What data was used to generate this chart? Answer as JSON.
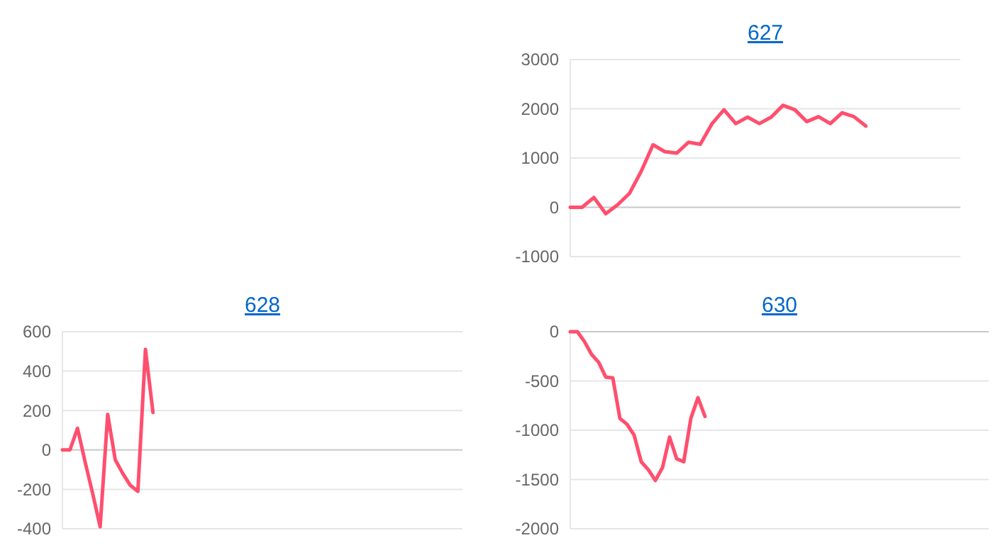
{
  "chart_data": [
    {
      "type": "line",
      "title": "627",
      "categories": [
        null,
        null,
        null,
        null,
        null,
        null,
        null,
        null,
        null,
        null,
        null,
        null,
        null,
        null,
        null,
        null,
        null,
        null,
        null,
        null,
        null,
        null,
        null,
        null,
        null,
        null,
        null,
        null,
        null,
        null,
        null,
        null,
        null,
        null
      ],
      "series": [
        {
          "color": "#ff4f6e",
          "values": [
            0,
            0,
            200,
            -130,
            50,
            280,
            730,
            1270,
            1130,
            1100,
            1320,
            1280,
            1700,
            1980,
            1700,
            1830,
            1700,
            1830,
            2070,
            1980,
            1740,
            1840,
            1700,
            1920,
            1840,
            1650,
            null,
            null,
            null,
            null,
            null,
            null,
            null,
            null
          ]
        }
      ],
      "ylim": [
        -1000,
        3000
      ],
      "yticks": [
        -1000,
        0,
        1000,
        2000,
        3000
      ],
      "grid": "y",
      "marker": "none",
      "line_style": "solid",
      "tick_labels": "y"
    },
    {
      "type": "line",
      "title": "628",
      "categories": [
        null,
        null,
        null,
        null,
        null,
        null,
        null,
        null,
        null,
        null,
        null,
        null,
        null,
        null,
        null,
        null,
        null,
        null,
        null,
        null,
        null,
        null,
        null,
        null,
        null,
        null,
        null,
        null,
        null,
        null,
        null,
        null,
        null,
        null,
        null,
        null,
        null,
        null,
        null,
        null,
        null,
        null,
        null,
        null,
        null,
        null,
        null,
        null,
        null,
        null,
        null,
        null,
        null,
        null
      ],
      "series": [
        {
          "color": "#ff4f6e",
          "values": [
            0,
            0,
            110,
            -60,
            -220,
            -390,
            180,
            -50,
            -120,
            -180,
            -210,
            510,
            190,
            null,
            null,
            null,
            null,
            null,
            null,
            null,
            null,
            null,
            null,
            null,
            null,
            null,
            null,
            null,
            null,
            null,
            null,
            null,
            null,
            null,
            null,
            null,
            null,
            null,
            null,
            null,
            null,
            null,
            null,
            null,
            null,
            null,
            null,
            null,
            null,
            null,
            null,
            null,
            null,
            null
          ]
        }
      ],
      "ylim": [
        -400,
        600
      ],
      "yticks": [
        -400,
        -200,
        0,
        200,
        400,
        600
      ],
      "grid": "y",
      "marker": "none",
      "line_style": "solid",
      "tick_labels": "y"
    },
    {
      "type": "line",
      "title": "630",
      "categories": [
        null,
        null,
        null,
        null,
        null,
        null,
        null,
        null,
        null,
        null,
        null,
        null,
        null,
        null,
        null,
        null,
        null,
        null,
        null,
        null,
        null,
        null,
        null,
        null,
        null,
        null,
        null,
        null,
        null,
        null,
        null,
        null,
        null,
        null,
        null,
        null,
        null,
        null,
        null,
        null,
        null,
        null,
        null,
        null,
        null,
        null,
        null,
        null,
        null,
        null,
        null,
        null,
        null,
        null,
        null,
        null,
        null,
        null,
        null,
        null
      ],
      "series": [
        {
          "color": "#ff4f6e",
          "values": [
            0,
            0,
            -100,
            -230,
            -310,
            -460,
            -470,
            -880,
            -940,
            -1050,
            -1320,
            -1400,
            -1510,
            -1380,
            -1070,
            -1290,
            -1320,
            -880,
            -670,
            -860,
            null,
            null,
            null,
            null,
            null,
            null,
            null,
            null,
            null,
            null,
            null,
            null,
            null,
            null,
            null,
            null,
            null,
            null,
            null,
            null,
            null,
            null,
            null,
            null,
            null,
            null,
            null,
            null,
            null,
            null,
            null,
            null,
            null,
            null,
            null,
            null,
            null,
            null,
            null,
            null
          ]
        }
      ],
      "ylim": [
        -2000,
        0
      ],
      "yticks": [
        -2000,
        -1500,
        -1000,
        -500,
        0
      ],
      "grid": "y",
      "marker": "none",
      "line_style": "solid",
      "tick_labels": "y"
    }
  ]
}
